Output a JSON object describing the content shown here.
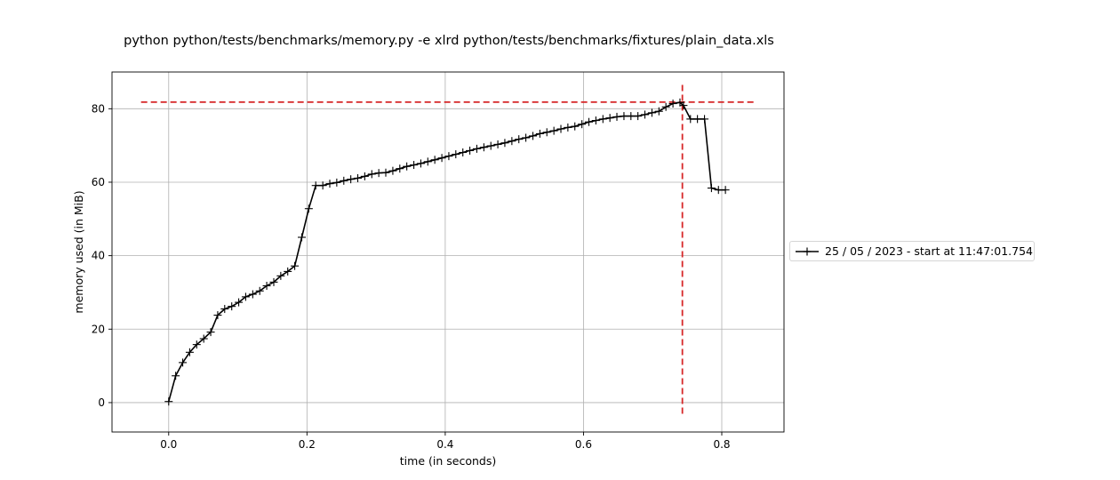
{
  "chart_data": {
    "type": "line",
    "title": "python python/tests/benchmarks/memory.py -e xlrd python/tests/benchmarks/fixtures/plain_data.xls",
    "xlabel": "time (in seconds)",
    "ylabel": "memory used (in MiB)",
    "xlim": [
      -0.082,
      0.89
    ],
    "ylim": [
      -8,
      90
    ],
    "xticks": [
      0.0,
      0.2,
      0.4,
      0.6,
      0.8
    ],
    "xtick_labels": [
      "0.0",
      "0.2",
      "0.4",
      "0.6",
      "0.8"
    ],
    "yticks": [
      0,
      20,
      40,
      60,
      80
    ],
    "ytick_labels": [
      "0",
      "20",
      "40",
      "60",
      "80"
    ],
    "grid": true,
    "legend_position": "outside-right",
    "series": [
      {
        "name": "25 / 05 / 2023 - start at 11:47:01.754",
        "color": "#000000",
        "marker": "plus",
        "x": [
          0.0,
          0.0101,
          0.0203,
          0.0304,
          0.0405,
          0.0507,
          0.0608,
          0.0709,
          0.081,
          0.0912,
          0.1013,
          0.1114,
          0.1216,
          0.1317,
          0.1418,
          0.152,
          0.1621,
          0.1722,
          0.1823,
          0.1925,
          0.2026,
          0.2127,
          0.2229,
          0.233,
          0.2431,
          0.2533,
          0.2634,
          0.2735,
          0.2836,
          0.2938,
          0.3039,
          0.314,
          0.3242,
          0.3343,
          0.3444,
          0.3546,
          0.3647,
          0.3748,
          0.3849,
          0.3951,
          0.4052,
          0.4153,
          0.4255,
          0.4356,
          0.4457,
          0.4559,
          0.466,
          0.4761,
          0.4862,
          0.4964,
          0.5065,
          0.5166,
          0.5268,
          0.5369,
          0.547,
          0.5572,
          0.5673,
          0.5774,
          0.5875,
          0.5977,
          0.6078,
          0.6179,
          0.6281,
          0.6382,
          0.6483,
          0.6585,
          0.6686,
          0.6787,
          0.6888,
          0.699,
          0.7091,
          0.7192,
          0.7294,
          0.7395,
          0.7446,
          0.7547,
          0.7648,
          0.775,
          0.7851,
          0.7952,
          0.8053
        ],
        "y": [
          0.3,
          7.3,
          10.9,
          13.7,
          15.8,
          17.4,
          19.2,
          23.8,
          25.5,
          26.2,
          27.3,
          28.8,
          29.5,
          30.4,
          31.8,
          32.8,
          34.5,
          35.7,
          37.2,
          45.0,
          52.8,
          59.1,
          59.1,
          59.6,
          59.9,
          60.4,
          60.8,
          61.1,
          61.6,
          62.2,
          62.5,
          62.6,
          63.1,
          63.7,
          64.3,
          64.7,
          65.1,
          65.6,
          66.1,
          66.6,
          67.1,
          67.6,
          68.1,
          68.6,
          69.1,
          69.5,
          69.9,
          70.3,
          70.7,
          71.2,
          71.7,
          72.1,
          72.6,
          73.2,
          73.6,
          74.0,
          74.5,
          74.9,
          75.2,
          75.8,
          76.4,
          76.8,
          77.2,
          77.5,
          77.8,
          78.0,
          78.0,
          78.0,
          78.4,
          78.9,
          79.3,
          80.5,
          81.4,
          81.7,
          80.9,
          77.2,
          77.2,
          77.2,
          58.4,
          57.9,
          57.9
        ]
      }
    ],
    "annotations": [
      {
        "kind": "hline",
        "y": 81.8,
        "x_range": [
          -0.04,
          0.848
        ],
        "color": "#d62728",
        "style": "dashed"
      },
      {
        "kind": "vline",
        "x": 0.743,
        "y_range": [
          -3.5,
          86.5
        ],
        "color": "#d62728",
        "style": "dashed"
      }
    ]
  }
}
